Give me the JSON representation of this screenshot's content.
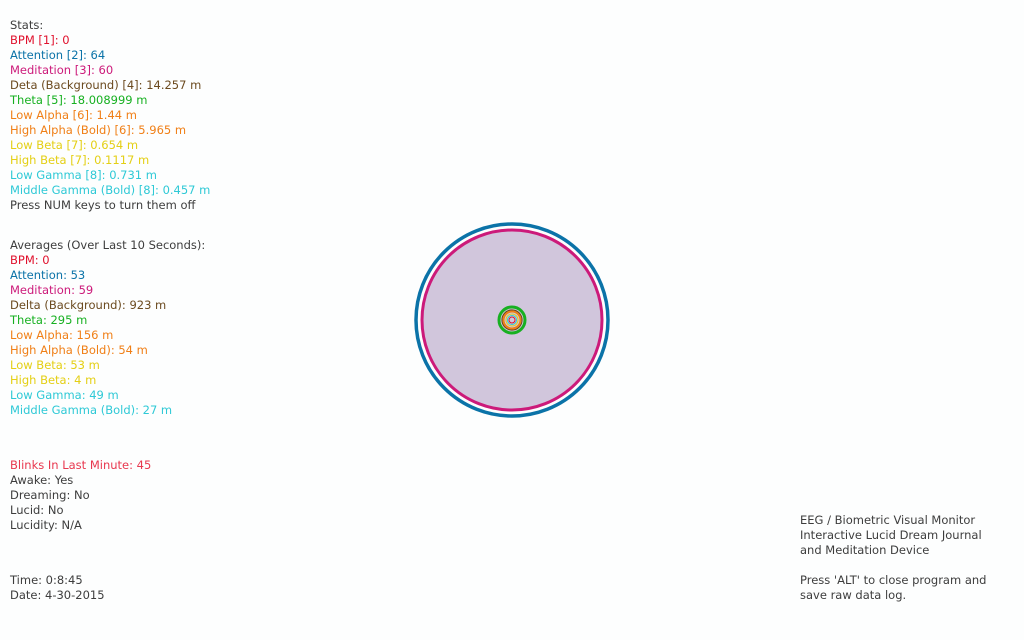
{
  "stats": {
    "header": "Stats:",
    "lines": [
      {
        "text": "BPM [1]: 0",
        "color": "#e0112d"
      },
      {
        "text": "Attention [2]: 64",
        "color": "#0b73a8"
      },
      {
        "text": "Meditation [3]: 60",
        "color": "#cc1a7a"
      },
      {
        "text": "Deta (Background) [4]: 14.257 m",
        "color": "#6b4a1f"
      },
      {
        "text": "Theta [5]: 18.008999 m",
        "color": "#17b021"
      },
      {
        "text": "Low Alpha [6]: 1.44 m",
        "color": "#f07f16"
      },
      {
        "text": "High Alpha (Bold) [6]: 5.965 m",
        "color": "#f07f16"
      },
      {
        "text": "Low Beta [7]: 0.654 m",
        "color": "#e4cf14"
      },
      {
        "text": "High Beta [7]: 0.1117 m",
        "color": "#e4cf14"
      },
      {
        "text": "Low Gamma [8]: 0.731 m",
        "color": "#2ec9d6"
      },
      {
        "text": "Middle Gamma (Bold) [8]: 0.457 m",
        "color": "#2ec9d6"
      }
    ],
    "footer": "Press NUM keys to turn them off"
  },
  "averages": {
    "header": "Averages (Over Last 10 Seconds):",
    "lines": [
      {
        "text": "BPM: 0",
        "color": "#e0112d"
      },
      {
        "text": "Attention: 53",
        "color": "#0b73a8"
      },
      {
        "text": "Meditation: 59",
        "color": "#cc1a7a"
      },
      {
        "text": "Delta (Background):  923 m",
        "color": "#6b4a1f"
      },
      {
        "text": "Theta: 295 m",
        "color": "#17b021"
      },
      {
        "text": "Low Alpha: 156 m",
        "color": "#f07f16"
      },
      {
        "text": "High Alpha (Bold): 54 m",
        "color": "#f07f16"
      },
      {
        "text": "Low Beta: 53 m",
        "color": "#e4cf14"
      },
      {
        "text": "High Beta: 4 m",
        "color": "#e4cf14"
      },
      {
        "text": "Low Gamma: 49 m",
        "color": "#2ec9d6"
      },
      {
        "text": "Middle Gamma (Bold): 27 m",
        "color": "#2ec9d6"
      }
    ]
  },
  "status": {
    "blinks": {
      "text": "Blinks In Last Minute: 45",
      "color": "#e8384f"
    },
    "awake": "Awake: Yes",
    "dreaming": "Dreaming: No",
    "lucid": "Lucid: No",
    "lucidity": "Lucidity: N/A"
  },
  "time": {
    "time": "Time: 0:8:45",
    "date": "Date: 4-30-2015"
  },
  "info": {
    "title_lines": [
      "EEG / Biometric Visual Monitor",
      "Interactive Lucid Dream Journal",
      "and Meditation Device"
    ],
    "instruction_lines": [
      "Press 'ALT' to close program and",
      "save raw data log."
    ]
  },
  "visual": {
    "fill_color": "#d1c6dc",
    "attention_ring_color": "#0b73a8",
    "meditation_ring_color": "#cc1a7a",
    "theta_color": "#17b021",
    "alpha_color": "#f07f16",
    "delta_color": "#6b4a1f",
    "beta_color": "#e4cf14",
    "gamma_color": "#2ec9d6",
    "center_color": "#e0112d"
  }
}
